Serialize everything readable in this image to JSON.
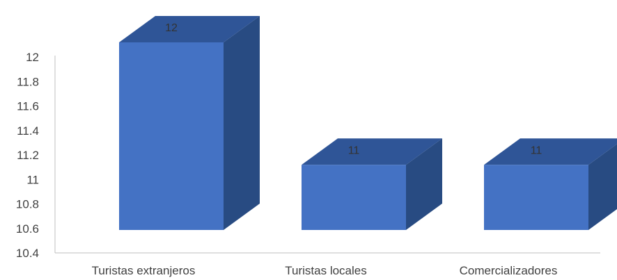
{
  "chart_data": {
    "type": "bar",
    "style": "3d-column",
    "title": "",
    "xlabel": "",
    "ylabel": "",
    "categories": [
      "Turistas extranjeros",
      "Turistas locales",
      "Comercializadores"
    ],
    "values": [
      12,
      11,
      11
    ],
    "data_labels": [
      "12",
      "11",
      "11"
    ],
    "ylim": [
      10.4,
      12
    ],
    "yticks": [
      "10.4",
      "10.6",
      "10.8",
      "11",
      "11.2",
      "11.4",
      "11.6",
      "11.8",
      "12"
    ],
    "grid": false,
    "legend": "none",
    "colors": {
      "front": "#4472c4",
      "top": "#2f5597",
      "side": "#284b82",
      "axis": "#bfbfbf",
      "text": "#404040"
    }
  }
}
